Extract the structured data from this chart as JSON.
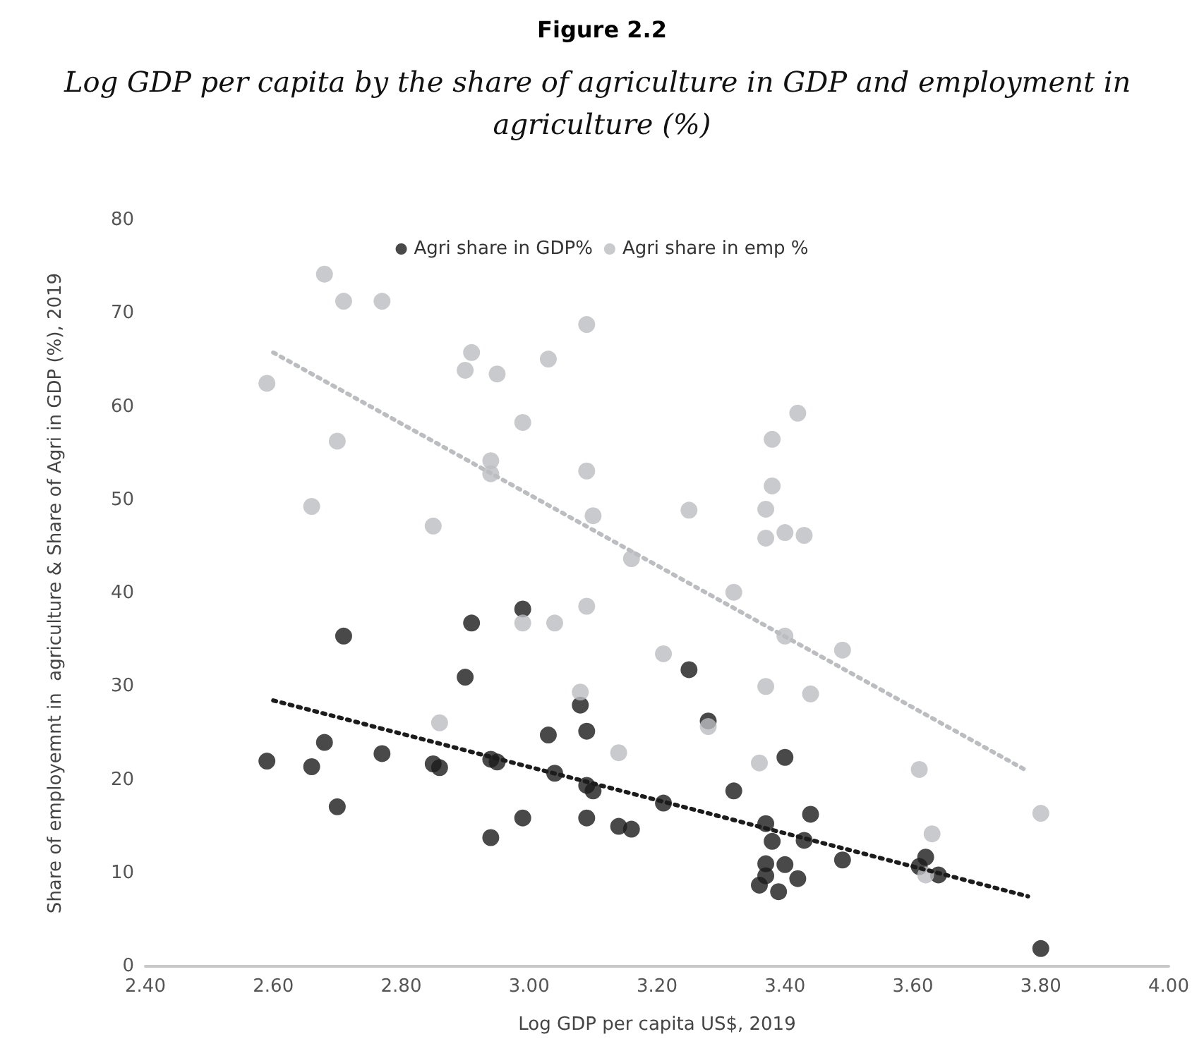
{
  "chart_data": {
    "type": "scatter",
    "title": "Figure 2.2",
    "subtitle": "Log GDP per capita by the share of agriculture in GDP and employment in agriculture (%)",
    "xlabel": "Log GDP per capita US$, 2019",
    "ylabel": "Share of employemnt in  agriculture & Share of Agri in GDP (%), 2019",
    "xlim": [
      2.4,
      4.0
    ],
    "xticks": [
      {
        "value": 2.4,
        "label": "2.40"
      },
      {
        "value": 2.6,
        "label": "2.60"
      },
      {
        "value": 2.8,
        "label": "2.80"
      },
      {
        "value": 3.0,
        "label": "3.00"
      },
      {
        "value": 3.2,
        "label": "3.20"
      },
      {
        "value": 3.4,
        "label": "3.40"
      },
      {
        "value": 3.6,
        "label": "3.60"
      },
      {
        "value": 3.8,
        "label": "3.80"
      },
      {
        "value": 4.0,
        "label": "4.00"
      }
    ],
    "ylim": [
      0,
      80
    ],
    "yticks": [
      0,
      10,
      20,
      30,
      40,
      50,
      60,
      70,
      80
    ],
    "grid": false,
    "legend": "top",
    "marker": "circle",
    "series": [
      {
        "name": "Agri share in GDP%",
        "color": "#1c1c1c",
        "x": [
          2.99,
          2.91,
          2.71,
          3.25,
          2.9,
          3.08,
          3.28,
          3.03,
          3.09,
          2.68,
          2.59,
          2.66,
          2.77,
          2.85,
          2.86,
          2.94,
          2.95,
          3.04,
          3.09,
          3.1,
          3.21,
          2.7,
          2.99,
          3.09,
          3.14,
          3.16,
          2.94,
          3.4,
          3.32,
          3.44,
          3.37,
          3.38,
          3.43,
          3.49,
          3.37,
          3.4,
          3.62,
          3.61,
          3.64,
          3.37,
          3.36,
          3.42,
          3.39,
          3.8
        ],
        "values": [
          38.3,
          36.8,
          35.4,
          31.8,
          31.0,
          28.0,
          26.3,
          24.8,
          25.2,
          24.0,
          22.0,
          21.4,
          22.8,
          21.7,
          21.3,
          22.2,
          21.9,
          20.7,
          19.4,
          18.8,
          17.5,
          17.1,
          15.9,
          15.9,
          15.0,
          14.7,
          13.8,
          22.4,
          18.8,
          16.3,
          15.3,
          13.4,
          13.5,
          11.4,
          11.0,
          10.9,
          11.7,
          10.7,
          9.8,
          9.7,
          8.7,
          9.4,
          8.0,
          1.9
        ]
      },
      {
        "name": "Agri share in emp %",
        "color": "#bcbdc0",
        "x": [
          2.68,
          2.71,
          2.77,
          3.09,
          2.91,
          2.9,
          2.95,
          3.03,
          2.59,
          2.99,
          2.7,
          2.94,
          2.94,
          3.09,
          2.66,
          2.85,
          3.1,
          3.25,
          3.16,
          3.09,
          2.99,
          3.04,
          3.21,
          3.08,
          2.86,
          3.14,
          3.28,
          3.42,
          3.38,
          3.38,
          3.37,
          3.37,
          3.4,
          3.43,
          3.32,
          3.4,
          3.49,
          3.37,
          3.44,
          3.36,
          3.61,
          3.8,
          3.63,
          3.62
        ],
        "values": [
          74.2,
          71.3,
          71.3,
          68.8,
          65.8,
          63.9,
          63.5,
          65.1,
          62.5,
          58.3,
          56.3,
          54.2,
          52.8,
          53.1,
          49.3,
          47.2,
          48.3,
          48.9,
          43.7,
          38.6,
          36.8,
          36.8,
          33.5,
          29.4,
          26.1,
          22.9,
          25.7,
          59.3,
          56.5,
          51.5,
          49.0,
          45.9,
          46.5,
          46.2,
          40.1,
          35.4,
          33.9,
          30.0,
          29.2,
          21.8,
          21.1,
          16.4,
          14.2,
          9.8
        ]
      },
      {
        "type": "line",
        "color": "#1c1c1c",
        "marker": "none",
        "line_style": "dotted",
        "x": [
          2.6,
          3.78
        ],
        "values": [
          28.5,
          7.5
        ]
      },
      {
        "type": "line",
        "color": "#bcbdc0",
        "marker": "none",
        "line_style": "dotted",
        "x": [
          2.6,
          3.78
        ],
        "values": [
          65.8,
          20.9
        ]
      }
    ]
  }
}
